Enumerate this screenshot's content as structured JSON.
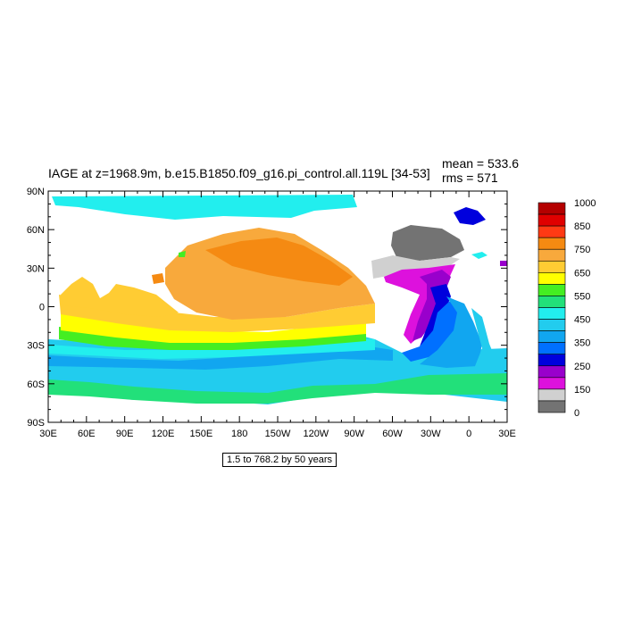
{
  "title": "IAGE at z=1968.9m, b.e15.B1850.f09_g16.pi_control.all.119L [34-53]",
  "stats": {
    "mean": "mean = 533.6",
    "rms": "rms = 571"
  },
  "subtitle": "1.5 to 768.2 by 50 years",
  "axes": {
    "x_ticks": [
      "30E",
      "60E",
      "90E",
      "120E",
      "150E",
      "180",
      "150W",
      "120W",
      "90W",
      "60W",
      "30W",
      "0",
      "30E"
    ],
    "y_ticks": [
      "90N",
      "60N",
      "30N",
      "0",
      "30S",
      "60S",
      "90S"
    ],
    "lon_range": [
      30,
      390
    ],
    "lat_range": [
      -90,
      90
    ]
  },
  "colorbar": {
    "labels": [
      "1000",
      "850",
      "750",
      "650",
      "550",
      "450",
      "350",
      "250",
      "150",
      "0"
    ],
    "colors": [
      "#b40000",
      "#e00000",
      "#ff3a14",
      "#f58a12",
      "#f8a93c",
      "#ffcc33",
      "#ffff00",
      "#44ee22",
      "#22e07a",
      "#22eeee",
      "#22ccee",
      "#11a6f0",
      "#0070ff",
      "#0000dd",
      "#9900cc",
      "#dd11dd",
      "#d0d0d0",
      "#737373"
    ]
  },
  "colors": {
    "gray_dark": "#737373",
    "gray_light": "#d0d0d0",
    "magenta": "#dd11dd",
    "purple": "#9900cc",
    "blue_dark": "#0000dd",
    "blue": "#0070ff",
    "sky": "#11a6f0",
    "lightblue": "#22ccee",
    "cyan": "#22eeee",
    "teal_green": "#22e07a",
    "green": "#44ee22",
    "yellow": "#ffff00",
    "gold": "#ffcc33",
    "light_orange": "#f8a93c",
    "orange": "#f58a12"
  }
}
